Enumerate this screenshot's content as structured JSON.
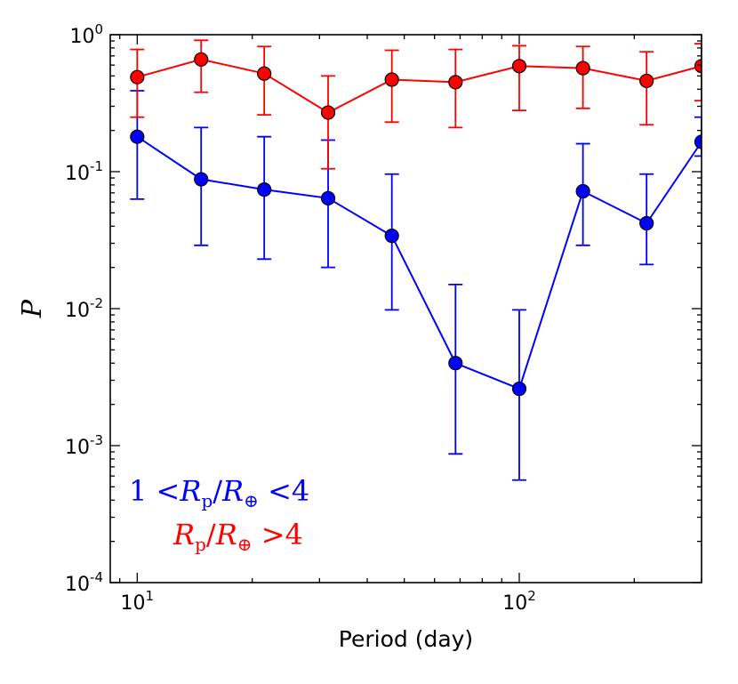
{
  "chart_data": {
    "type": "line",
    "x_scale": "log",
    "y_scale": "log",
    "xlabel": "Period (day)",
    "ylabel": "P",
    "xlim": [
      8.5,
      300
    ],
    "ylim": [
      0.0001,
      1
    ],
    "x_ticks": [
      {
        "value": 10,
        "base": "10",
        "exp": "1"
      },
      {
        "value": 100,
        "base": "10",
        "exp": "2"
      }
    ],
    "y_ticks": [
      {
        "value": 1,
        "base": "10",
        "exp": "0"
      },
      {
        "value": 0.1,
        "base": "10",
        "exp": "-1"
      },
      {
        "value": 0.01,
        "base": "10",
        "exp": "-2"
      },
      {
        "value": 0.001,
        "base": "10",
        "exp": "-3"
      },
      {
        "value": 0.0001,
        "base": "10",
        "exp": "-4"
      }
    ],
    "series": [
      {
        "name": "1 < Rp/R⊕ < 4",
        "color": "#0000ff",
        "x": [
          10.0,
          14.7,
          21.5,
          31.6,
          46.4,
          68.1,
          100.0,
          146.8,
          215.4,
          300.0
        ],
        "y": [
          0.18,
          0.088,
          0.074,
          0.064,
          0.034,
          0.004,
          0.0026,
          0.072,
          0.042,
          0.165
        ],
        "yerr_low": [
          0.063,
          0.029,
          0.023,
          0.02,
          0.0098,
          0.00087,
          0.00056,
          0.029,
          0.021,
          0.13
        ],
        "yerr_high": [
          0.39,
          0.21,
          0.18,
          0.17,
          0.096,
          0.015,
          0.0098,
          0.16,
          0.096,
          0.25
        ]
      },
      {
        "name": "Rp/R⊕ > 4",
        "color": "#ff0000",
        "x": [
          10.0,
          14.7,
          21.5,
          31.6,
          46.4,
          68.1,
          100.0,
          146.8,
          215.4,
          300.0
        ],
        "y": [
          0.49,
          0.66,
          0.52,
          0.27,
          0.47,
          0.45,
          0.59,
          0.57,
          0.46,
          0.59
        ],
        "yerr_low": [
          0.25,
          0.38,
          0.26,
          0.105,
          0.23,
          0.21,
          0.28,
          0.29,
          0.22,
          0.33
        ],
        "yerr_high": [
          0.78,
          0.91,
          0.82,
          0.5,
          0.77,
          0.78,
          0.83,
          0.82,
          0.75,
          0.86
        ]
      }
    ],
    "legend": {
      "placement": "bottom-left",
      "entries": [
        {
          "prefix": "1 <",
          "r": "R",
          "sub_p": "p",
          "slash": "/",
          "r2": "R",
          "sub_e": "⊕",
          "suffix": " <4",
          "color": "#0000ff"
        },
        {
          "prefix": "",
          "r": "R",
          "sub_p": "p",
          "slash": "/",
          "r2": "R",
          "sub_e": "⊕",
          "suffix": " >4",
          "color": "#ff0000"
        }
      ]
    }
  }
}
